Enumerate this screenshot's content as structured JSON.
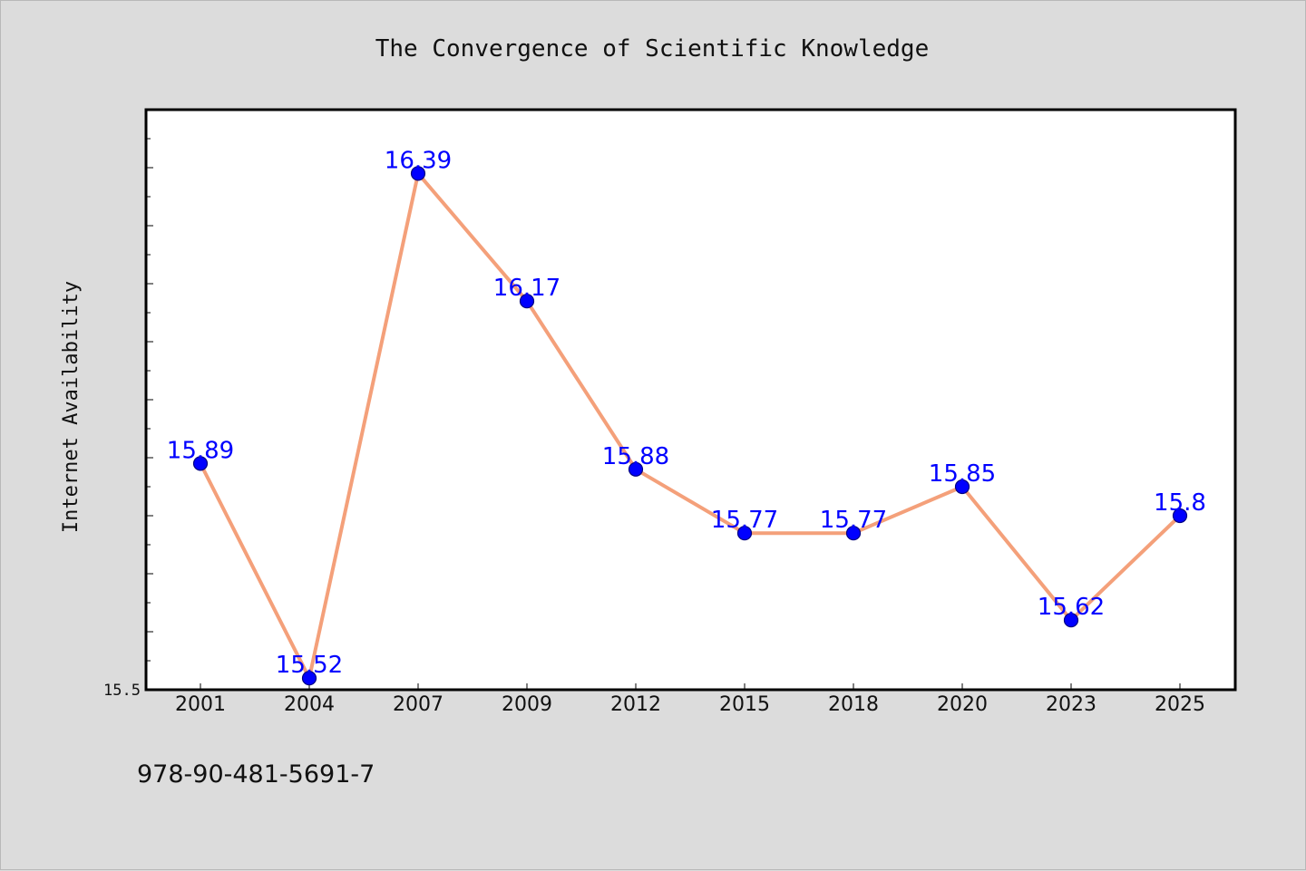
{
  "chart_data": {
    "type": "line",
    "title": "The Convergence of Scientific Knowledge",
    "ylabel": "Internet Availability",
    "xlabel": "",
    "categories": [
      "2001",
      "2004",
      "2007",
      "2009",
      "2012",
      "2015",
      "2018",
      "2020",
      "2023",
      "2025"
    ],
    "series": [
      {
        "values": [
          15.89,
          15.52,
          16.39,
          16.17,
          15.88,
          15.77,
          15.77,
          15.85,
          15.62,
          15.8
        ],
        "labels": [
          "15.89",
          "15.52",
          "16.39",
          "16.17",
          "15.88",
          "15.77",
          "15.77",
          "15.85",
          "15.62",
          "15.8"
        ]
      }
    ],
    "ytick_labels": [
      "15.5"
    ],
    "ylim": [
      15.5,
      16.5
    ],
    "grid": false,
    "colors": {
      "line": "#f4a07a",
      "marker": "#0000ff",
      "marker_edge": "#000080",
      "data_label": "#0000ff",
      "plot_bg": "#ffffff",
      "page_bg": "#dcdcdc"
    }
  },
  "footer": {
    "isbn": "978-90-481-5691-7"
  }
}
